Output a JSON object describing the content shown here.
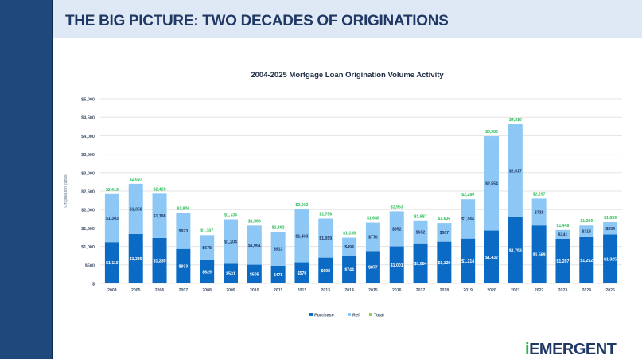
{
  "header": {
    "title": "THE BIG PICTURE: TWO DECADES OF ORIGINATIONS"
  },
  "logo": {
    "prefix": "i",
    "text": "EMERGENT"
  },
  "colors": {
    "purchase": "#0a6ac4",
    "refi": "#8cc7f5",
    "total": "#2dbe5a",
    "sidebar": "#1f497d",
    "header_band": "#dfe8f5"
  },
  "chart_data": {
    "type": "bar",
    "stacked": true,
    "title": "2004-2025 Mortgage Loan Origination Volume Activity",
    "xlabel": "",
    "ylabel": "Origination ($B)s",
    "ylim": [
      0,
      5000
    ],
    "yticks": [
      0,
      500,
      1000,
      1500,
      2000,
      2500,
      3000,
      3500,
      4000,
      4500,
      5000
    ],
    "ytick_labels": [
      "$",
      "$500",
      "$1,000",
      "$1,500",
      "$2,000",
      "$2,500",
      "$3,000",
      "$3,500",
      "$4,000",
      "$4,500",
      "$5,000"
    ],
    "grid": true,
    "legend_position": "bottom",
    "categories": [
      "2004",
      "2005",
      "2006",
      "2007",
      "2008",
      "2009",
      "2010",
      "2011",
      "2012",
      "2013",
      "2014",
      "2015",
      "2016",
      "2017",
      "2018",
      "2019",
      "2020",
      "2021",
      "2022",
      "2023",
      "2024",
      "2025"
    ],
    "series": [
      {
        "name": "Purchase",
        "values": [
          1116,
          1339,
          1230,
          933,
          629,
          531,
          505,
          478,
          570,
          698,
          744,
          877,
          1001,
          1084,
          1129,
          1214,
          1432,
          1793,
          1569,
          1207,
          1252,
          1325
        ]
      },
      {
        "name": "Refi",
        "values": [
          1303,
          1358,
          1198,
          973,
          678,
          1204,
          1061,
          913,
          1433,
          1059,
          494,
          770,
          952,
          602,
          507,
          1066,
          2554,
          2517,
          728,
          241,
          316,
          334
        ]
      },
      {
        "name": "Total",
        "values": [
          2419,
          2697,
          2428,
          1906,
          1307,
          1734,
          1566,
          1392,
          2002,
          1756,
          1238,
          1648,
          1953,
          1687,
          1636,
          2280,
          3986,
          4310,
          2297,
          1448,
          1569,
          1659
        ]
      }
    ]
  }
}
